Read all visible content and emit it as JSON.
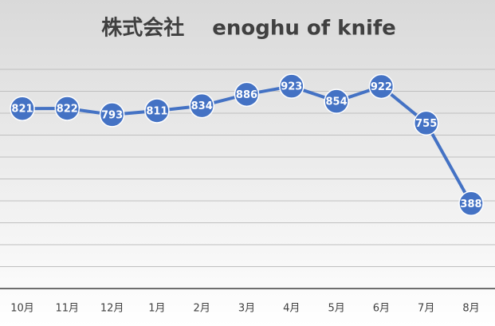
{
  "chart_data": {
    "type": "line",
    "title": "株式会社　 enoghu of knife",
    "categories": [
      "10月",
      "11月",
      "12月",
      "1月",
      "2月",
      "3月",
      "4月",
      "5月",
      "6月",
      "7月",
      "8月"
    ],
    "series": [
      {
        "color": "#4472c4",
        "values": [
          821,
          822,
          793,
          811,
          834,
          886,
          923,
          854,
          922,
          755,
          388
        ]
      }
    ],
    "ylim": [
      0,
      1000
    ],
    "yticks": [
      0,
      100,
      200,
      300,
      400,
      500,
      600,
      700,
      800,
      900,
      1000
    ],
    "grid": true
  }
}
